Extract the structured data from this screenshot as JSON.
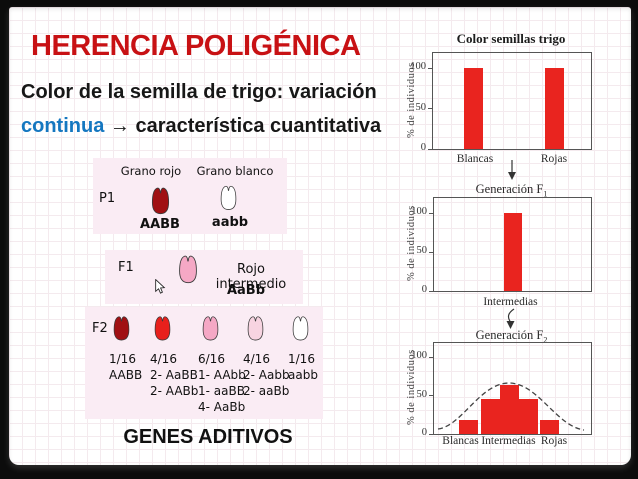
{
  "slide": {
    "header": {
      "title": "HERENCIA POLIGÉNICA",
      "subtitle_line1": "Color de la semilla de trigo: variación",
      "subtitle_highlight": "continua",
      "subtitle_arrow": "→",
      "subtitle_rest": "característica cuantitativa"
    },
    "colors": {
      "title_red": "#c81114",
      "link_blue": "#1577c0",
      "bar_red": "#e9241f",
      "box_pink": "#faecf4",
      "seed_dark_red": "#a01013",
      "seed_red": "#e8201c",
      "seed_pink": "#f5a8c5",
      "seed_light_pink": "#f7d4e1",
      "seed_white": "#ffffff"
    },
    "pedigree": {
      "p1": {
        "label": "P1",
        "header_left": "Grano rojo",
        "header_right": "Grano blanco",
        "genotype_left": "AABB",
        "genotype_right": "aabb",
        "seed_left": "dark_red",
        "seed_right": "white"
      },
      "f1": {
        "label": "F1",
        "phenotype": "Rojo intermedio",
        "genotype": "AaBb",
        "seed": "pink"
      },
      "f2": {
        "label": "F2",
        "columns": [
          {
            "fraction": "1/16",
            "seed": "dark_red",
            "genotypes": [
              "AABB"
            ]
          },
          {
            "fraction": "4/16",
            "seed": "red",
            "genotypes": [
              "2- AaBB",
              "2- AABb"
            ]
          },
          {
            "fraction": "6/16",
            "seed": "pink",
            "genotypes": [
              "1- AAbb",
              "1- aaBB",
              "4- AaBb"
            ]
          },
          {
            "fraction": "4/16",
            "seed": "light_pink",
            "genotypes": [
              "2- Aabb",
              "2- aaBb"
            ]
          },
          {
            "fraction": "1/16",
            "seed": "white",
            "genotypes": [
              "aabb"
            ]
          }
        ]
      },
      "footer": "GENES ADITIVOS"
    }
  },
  "chart_data": [
    {
      "type": "bar",
      "title": "Color semillas trigo",
      "title_sub": "",
      "ylabel": "% de individuos",
      "yticks": [
        0,
        50,
        100
      ],
      "ylim": [
        0,
        118
      ],
      "grid": false,
      "legend": false,
      "categories": [
        "Blancas",
        "Rojas"
      ],
      "values": [
        100,
        100
      ],
      "bar_color": "#e9241f"
    },
    {
      "type": "bar",
      "title": "Generación F",
      "title_sub": "1",
      "ylabel": "% de individuos",
      "yticks": [
        0,
        50,
        100
      ],
      "ylim": [
        0,
        118
      ],
      "grid": false,
      "legend": false,
      "categories": [
        "Intermedias"
      ],
      "values": [
        100
      ],
      "bar_color": "#e9241f"
    },
    {
      "type": "bar",
      "title": "Generación F",
      "title_sub": "2",
      "ylabel": "% de individuos",
      "yticks": [
        0,
        50,
        100
      ],
      "ylim": [
        0,
        118
      ],
      "grid": false,
      "legend": false,
      "categories": [
        "Blancas",
        "Intermedias",
        "Rojas"
      ],
      "values": [
        18,
        45,
        64,
        45,
        18
      ],
      "bar_color": "#e9241f",
      "overlay_curve": "dashed normal-distribution envelope"
    }
  ]
}
